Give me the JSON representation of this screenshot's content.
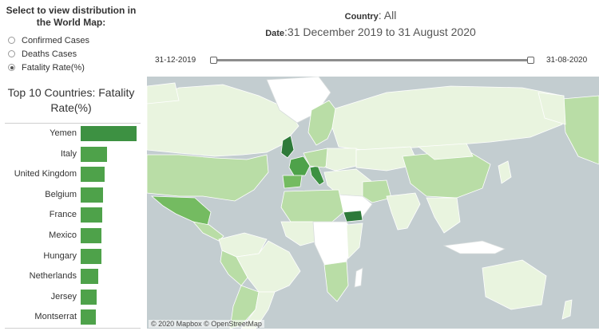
{
  "selector": {
    "title": "Select to view distribution in the World Map:",
    "options": [
      {
        "label": "Confirmed Cases",
        "checked": false
      },
      {
        "label": "Deaths Cases",
        "checked": false
      },
      {
        "label": "Fatality Rate(%)",
        "checked": true
      }
    ]
  },
  "top10": {
    "title": "Top 10 Countries: Fatality Rate(%)"
  },
  "chart_data": {
    "type": "bar",
    "title": "Top 10 Countries: Fatality Rate(%)",
    "categories": [
      "Yemen",
      "Italy",
      "United Kingdom",
      "Belgium",
      "France",
      "Mexico",
      "Hungary",
      "Netherlands",
      "Jersey",
      "Montserrat"
    ],
    "values": [
      28.8,
      13.7,
      12.5,
      11.6,
      11.3,
      10.9,
      10.7,
      9.0,
      8.4,
      7.7
    ],
    "colors": {
      "bar": "#4ea24a",
      "top_bar": "#3d9142"
    }
  },
  "header": {
    "country_label": "Country",
    "country_value": ": All",
    "date_label": "Date",
    "date_value": ":31 December 2019 to 31 August 2020"
  },
  "slider": {
    "start_label": "31-12-2019",
    "end_label": "31-08-2020"
  },
  "map": {
    "attribution": "© 2020 Mapbox © OpenStreetMap",
    "colors": {
      "ocean": "#c3cdd0",
      "light": "#e9f4df",
      "mid": "#b9dda6",
      "dark": "#74bb61",
      "darkest": "#2e7a3a"
    }
  }
}
